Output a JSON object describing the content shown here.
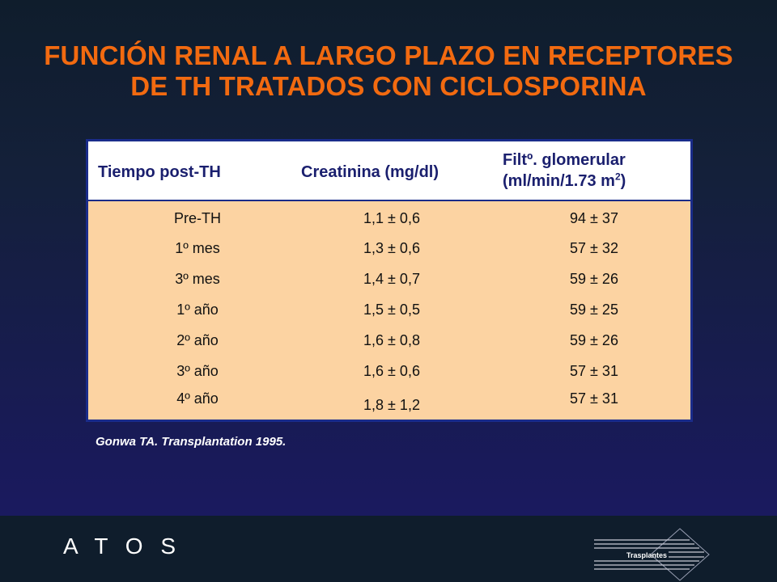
{
  "title": {
    "line1": "FUNCIÓN RENAL A LARGO PLAZO EN RECEPTORES",
    "line2": "DE TH TRATADOS CON CICLOSPORINA"
  },
  "table": {
    "headers": {
      "col1": "Tiempo post-TH",
      "col2": "Creatinina (mg/dl)",
      "col3_line1": "Filtº. glomerular",
      "col3_line2_pre": "(ml/min/1.73 m",
      "col3_sup": "2",
      "col3_line2_post": ")"
    },
    "rows": [
      {
        "time": "Pre-TH",
        "creatinine": "1,1 ± 0,6",
        "gfr": "94 ± 37"
      },
      {
        "time": "1º mes",
        "creatinine": "1,3 ± 0,6",
        "gfr": "57 ± 32"
      },
      {
        "time": "3º mes",
        "creatinine": "1,4 ± 0,7",
        "gfr": "59 ± 26"
      },
      {
        "time": "1º año",
        "creatinine": "1,5 ± 0,5",
        "gfr": "59 ± 25"
      },
      {
        "time": "2º año",
        "creatinine": "1,6 ± 0,8",
        "gfr": "59 ± 26"
      },
      {
        "time": "3º año",
        "creatinine": "1,6 ± 0,6",
        "gfr": "57 ± 31"
      },
      {
        "time": "4º año",
        "creatinine": "1,8 ± 1,2",
        "gfr": "57 ± 31"
      }
    ]
  },
  "reference": "Gonwa TA. Transplantation 1995.",
  "footer": {
    "brand": "A T O S",
    "logo_label": "Trasplantes",
    "colors": {
      "title": "#f26a10",
      "table_fill": "#fcd3a2",
      "table_border": "#1a2c8a"
    }
  }
}
